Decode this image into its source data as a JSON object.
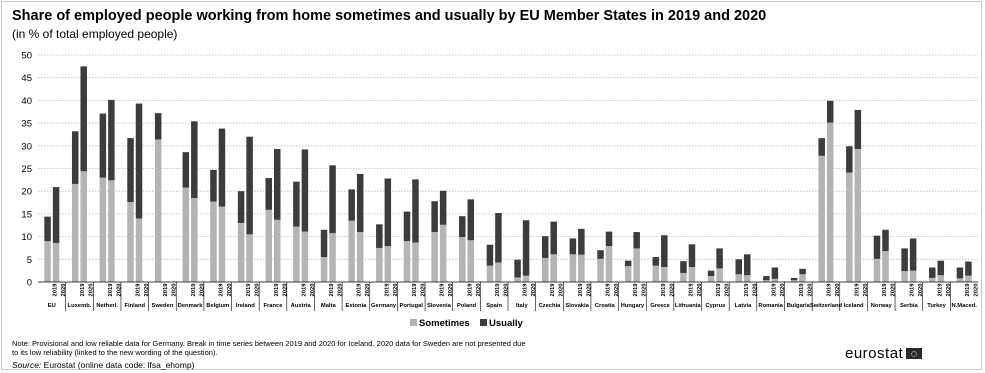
{
  "title": "Share of employed people working from home sometimes and usually by EU Member States in 2019 and 2020",
  "subtitle": "(in % of total employed people)",
  "note": "Note: Provisional and low reliable data for Germany. Break in time series between 2019 and 2020 for Iceland. 2020 data for Sweden are not presented due to its low reliability (linked to the new wording of the question).",
  "source": {
    "label": "Source:",
    "text": "Eurostat (online data code: lfsa_ehomp)"
  },
  "logo": "eurostat",
  "colors": {
    "sometimes": "#b4b4b4",
    "usually": "#3c3c3c",
    "grid": "#bdbdbd"
  },
  "chart_data": {
    "type": "bar",
    "stacked": true,
    "ylim": [
      0,
      50
    ],
    "yticks": [
      0,
      5,
      10,
      15,
      20,
      25,
      30,
      35,
      40,
      45,
      50
    ],
    "grid": true,
    "legend_position": "bottom",
    "series": [
      {
        "name": "Sometimes",
        "color": "#b4b4b4"
      },
      {
        "name": "Usually",
        "color": "#3c3c3c"
      }
    ],
    "groups": [
      {
        "label": "EU",
        "bars": [
          {
            "year": "2019",
            "sometimes": 9.0,
            "usually": 5.4
          },
          {
            "year": "2020",
            "sometimes": 8.6,
            "usually": 12.3
          }
        ]
      },
      {
        "label": "Luxemb.",
        "bars": [
          {
            "year": "2019",
            "sometimes": 21.6,
            "usually": 11.6
          },
          {
            "year": "2020",
            "sometimes": 24.4,
            "usually": 23.1
          }
        ]
      },
      {
        "label": "Netherl.",
        "bars": [
          {
            "year": "2019",
            "sometimes": 23.0,
            "usually": 14.1
          },
          {
            "year": "2020",
            "sometimes": 22.4,
            "usually": 17.7
          }
        ]
      },
      {
        "label": "Finland",
        "bars": [
          {
            "year": "2019",
            "sometimes": 17.6,
            "usually": 14.1
          },
          {
            "year": "2020",
            "sometimes": 14.0,
            "usually": 25.3
          }
        ]
      },
      {
        "label": "Sweden",
        "bars": [
          {
            "year": "2019",
            "sometimes": 31.4,
            "usually": 5.8
          },
          {
            "year": "2020",
            "sometimes": null,
            "usually": null
          }
        ]
      },
      {
        "label": "Denmark",
        "bars": [
          {
            "year": "2019",
            "sometimes": 20.8,
            "usually": 7.8
          },
          {
            "year": "2020",
            "sometimes": 18.5,
            "usually": 16.9
          }
        ]
      },
      {
        "label": "Belgium",
        "bars": [
          {
            "year": "2019",
            "sometimes": 17.7,
            "usually": 7.0
          },
          {
            "year": "2020",
            "sometimes": 16.6,
            "usually": 17.2
          }
        ]
      },
      {
        "label": "Ireland",
        "bars": [
          {
            "year": "2019",
            "sometimes": 13.0,
            "usually": 7.0
          },
          {
            "year": "2020",
            "sometimes": 10.5,
            "usually": 21.5
          }
        ]
      },
      {
        "label": "France",
        "bars": [
          {
            "year": "2019",
            "sometimes": 15.9,
            "usually": 7.0
          },
          {
            "year": "2020",
            "sometimes": 13.7,
            "usually": 15.6
          }
        ]
      },
      {
        "label": "Austria",
        "bars": [
          {
            "year": "2019",
            "sometimes": 12.2,
            "usually": 9.9
          },
          {
            "year": "2020",
            "sometimes": 11.1,
            "usually": 18.1
          }
        ]
      },
      {
        "label": "Malta",
        "bars": [
          {
            "year": "2019",
            "sometimes": 5.5,
            "usually": 6.0
          },
          {
            "year": "2020",
            "sometimes": 10.8,
            "usually": 14.9
          }
        ]
      },
      {
        "label": "Estonia",
        "bars": [
          {
            "year": "2019",
            "sometimes": 13.5,
            "usually": 6.9
          },
          {
            "year": "2020",
            "sometimes": 11.0,
            "usually": 12.8
          }
        ]
      },
      {
        "label": "Germany",
        "bars": [
          {
            "year": "2019",
            "sometimes": 7.5,
            "usually": 5.2
          },
          {
            "year": "2020",
            "sometimes": 7.9,
            "usually": 14.9
          }
        ]
      },
      {
        "label": "Portugal",
        "bars": [
          {
            "year": "2019",
            "sometimes": 9.0,
            "usually": 6.5
          },
          {
            "year": "2020",
            "sometimes": 8.7,
            "usually": 13.9
          }
        ]
      },
      {
        "label": "Slovenia",
        "bars": [
          {
            "year": "2019",
            "sometimes": 11.0,
            "usually": 6.8
          },
          {
            "year": "2020",
            "sometimes": 12.6,
            "usually": 7.5
          }
        ]
      },
      {
        "label": "Poland",
        "bars": [
          {
            "year": "2019",
            "sometimes": 9.9,
            "usually": 4.6
          },
          {
            "year": "2020",
            "sometimes": 9.2,
            "usually": 9.0
          }
        ]
      },
      {
        "label": "Spain",
        "bars": [
          {
            "year": "2019",
            "sometimes": 3.6,
            "usually": 4.6
          },
          {
            "year": "2020",
            "sometimes": 4.3,
            "usually": 10.9
          }
        ]
      },
      {
        "label": "Italy",
        "bars": [
          {
            "year": "2019",
            "sometimes": 1.0,
            "usually": 3.9
          },
          {
            "year": "2020",
            "sometimes": 1.4,
            "usually": 12.2
          }
        ]
      },
      {
        "label": "Czechia",
        "bars": [
          {
            "year": "2019",
            "sometimes": 5.3,
            "usually": 4.8
          },
          {
            "year": "2020",
            "sometimes": 6.1,
            "usually": 7.2
          }
        ]
      },
      {
        "label": "Slovakia",
        "bars": [
          {
            "year": "2019",
            "sometimes": 6.1,
            "usually": 3.5
          },
          {
            "year": "2020",
            "sometimes": 6.0,
            "usually": 5.7
          }
        ]
      },
      {
        "label": "Croatia",
        "bars": [
          {
            "year": "2019",
            "sometimes": 5.1,
            "usually": 1.9
          },
          {
            "year": "2020",
            "sometimes": 7.9,
            "usually": 3.2
          }
        ]
      },
      {
        "label": "Hungary",
        "bars": [
          {
            "year": "2019",
            "sometimes": 3.5,
            "usually": 1.2
          },
          {
            "year": "2020",
            "sometimes": 7.4,
            "usually": 3.6
          }
        ]
      },
      {
        "label": "Greece",
        "bars": [
          {
            "year": "2019",
            "sometimes": 3.6,
            "usually": 1.9
          },
          {
            "year": "2020",
            "sometimes": 3.3,
            "usually": 7.0
          }
        ]
      },
      {
        "label": "Lithuania",
        "bars": [
          {
            "year": "2019",
            "sometimes": 2.0,
            "usually": 2.6
          },
          {
            "year": "2020",
            "sometimes": 3.3,
            "usually": 5.0
          }
        ]
      },
      {
        "label": "Cyprus",
        "bars": [
          {
            "year": "2019",
            "sometimes": 1.3,
            "usually": 1.2
          },
          {
            "year": "2020",
            "sometimes": 3.0,
            "usually": 4.4
          }
        ]
      },
      {
        "label": "Latvia",
        "bars": [
          {
            "year": "2019",
            "sometimes": 1.7,
            "usually": 3.3
          },
          {
            "year": "2020",
            "sometimes": 1.5,
            "usually": 4.6
          }
        ]
      },
      {
        "label": "Romania",
        "bars": [
          {
            "year": "2019",
            "sometimes": 0.4,
            "usually": 0.9
          },
          {
            "year": "2020",
            "sometimes": 0.7,
            "usually": 2.5
          }
        ]
      },
      {
        "label": "Bulgaria",
        "bars": [
          {
            "year": "2019",
            "sometimes": 0.4,
            "usually": 0.5
          },
          {
            "year": "2020",
            "sometimes": 1.7,
            "usually": 1.2
          }
        ]
      },
      {
        "label": "Switzerland",
        "bars": [
          {
            "year": "2019",
            "sometimes": 27.8,
            "usually": 3.9
          },
          {
            "year": "2020",
            "sometimes": 35.1,
            "usually": 4.8
          }
        ]
      },
      {
        "label": "Iceland",
        "bars": [
          {
            "year": "2019",
            "sometimes": 24.1,
            "usually": 5.8
          },
          {
            "year": "2020",
            "sometimes": 29.3,
            "usually": 8.6
          }
        ]
      },
      {
        "label": "Norway",
        "bars": [
          {
            "year": "2019",
            "sometimes": 5.1,
            "usually": 5.1
          },
          {
            "year": "2020",
            "sometimes": 6.8,
            "usually": 4.7
          }
        ]
      },
      {
        "label": "Serbia",
        "bars": [
          {
            "year": "2019",
            "sometimes": 2.4,
            "usually": 5.0
          },
          {
            "year": "2020",
            "sometimes": 2.5,
            "usually": 7.1
          }
        ]
      },
      {
        "label": "Turkey",
        "bars": [
          {
            "year": "2019",
            "sometimes": 0.9,
            "usually": 2.3
          },
          {
            "year": "2020",
            "sometimes": 1.5,
            "usually": 3.2
          }
        ]
      },
      {
        "label": "N.Maced.",
        "bars": [
          {
            "year": "2019",
            "sometimes": 0.8,
            "usually": 2.4
          },
          {
            "year": "2020",
            "sometimes": 1.4,
            "usually": 3.1
          }
        ]
      }
    ]
  }
}
